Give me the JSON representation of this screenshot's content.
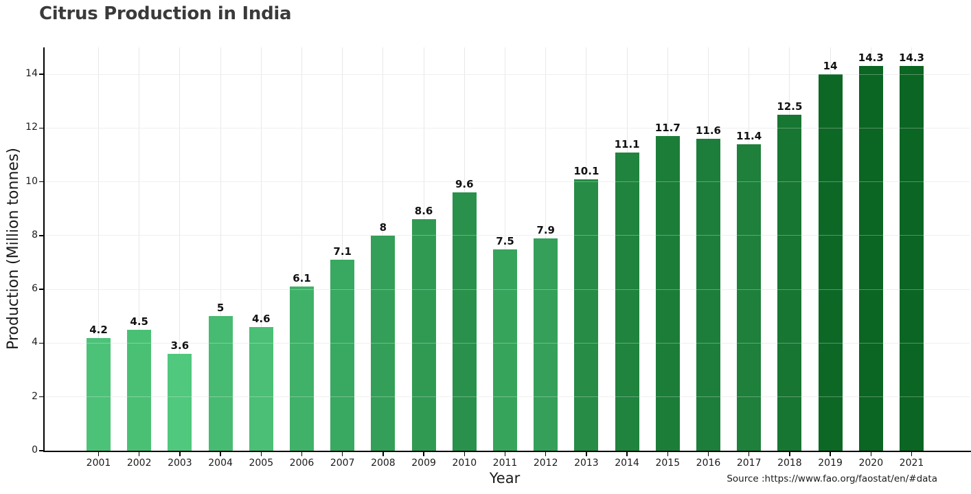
{
  "figure": {
    "background": "#ffffff",
    "title": "Citrus Production in India",
    "title_color": "#3a3a3a",
    "source": "Source :https://www.fao.org/faostat/en/#data"
  },
  "chart_data": {
    "type": "bar",
    "title": "Citrus Production in India",
    "xlabel": "Year",
    "ylabel": "Production (Million tonnes)",
    "categories": [
      "2001",
      "2002",
      "2003",
      "2004",
      "2005",
      "2006",
      "2007",
      "2008",
      "2009",
      "2010",
      "2011",
      "2012",
      "2013",
      "2014",
      "2015",
      "2016",
      "2017",
      "2018",
      "2019",
      "2020",
      "2021"
    ],
    "values": [
      4.2,
      4.5,
      3.6,
      5,
      4.6,
      6.1,
      7.1,
      8,
      8.6,
      9.6,
      7.5,
      7.9,
      10.1,
      11.1,
      11.7,
      11.6,
      11.4,
      12.5,
      14,
      14.3,
      14.3
    ],
    "bar_colors": [
      "#4cc278",
      "#4ac075",
      "#50c87d",
      "#47bb71",
      "#4abf75",
      "#40b168",
      "#39a860",
      "#349f58",
      "#309a53",
      "#29914b",
      "#37a45c",
      "#34a059",
      "#268c46",
      "#20833e",
      "#1c7d39",
      "#1c7e3a",
      "#1e803b",
      "#177632",
      "#0d6826",
      "#0b6523",
      "#0b6523"
    ],
    "value_labels_shown": true,
    "ylim": [
      0,
      15
    ],
    "yticks": [
      0,
      2,
      4,
      6,
      8,
      10,
      12,
      14
    ],
    "grid": true,
    "grid_color": "#e8e8e8",
    "axis_color": "#000000",
    "tick_label_color": "#1a1a1a",
    "bar_label_color": "#111111",
    "legend": "none",
    "source": "Source :https://www.fao.org/faostat/en/#data"
  }
}
